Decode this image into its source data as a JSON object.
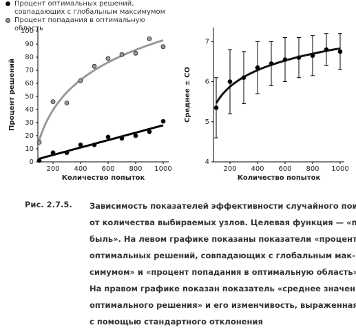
{
  "chart_data": [
    {
      "type": "scatter",
      "xlabel": "Количество попыток",
      "ylabel": "Процент решений",
      "legend": "top",
      "xlim": [
        90,
        1040
      ],
      "xticks": [
        200,
        400,
        600,
        800,
        1000
      ],
      "ylim": [
        0,
        100
      ],
      "yticks": [
        0,
        10,
        20,
        30,
        40,
        50,
        60,
        70,
        80,
        90,
        100
      ],
      "series": [
        {
          "name": "Процент оптимальных решений, совпадающих с глобальным максимумом",
          "color": "#000000",
          "trendline": "linear",
          "x": [
            100,
            200,
            300,
            400,
            500,
            600,
            700,
            800,
            900,
            1000
          ],
          "values": [
            1,
            7,
            7,
            13,
            13,
            19,
            18,
            20,
            23,
            31
          ]
        },
        {
          "name": "Процент попадания в оптимальную область",
          "color": "#999999",
          "trendline": "log",
          "x": [
            100,
            200,
            300,
            400,
            500,
            600,
            700,
            800,
            900,
            1000
          ],
          "values": [
            15,
            46,
            45,
            62,
            73,
            79,
            82,
            83,
            94,
            88
          ]
        }
      ]
    },
    {
      "type": "errorbar",
      "xlabel": "Количество попыток",
      "ylabel": "Среднее ± СО",
      "xlim": [
        80,
        1030
      ],
      "xticks": [
        200,
        400,
        600,
        800,
        1000
      ],
      "ylim": [
        4,
        7.35
      ],
      "yticks": [
        4,
        5,
        6,
        7
      ],
      "series": [
        {
          "color": "#000000",
          "trendline": "log",
          "x": [
            100,
            200,
            300,
            400,
            500,
            600,
            700,
            800,
            900,
            1000
          ],
          "values": [
            5.35,
            6.0,
            6.1,
            6.35,
            6.45,
            6.55,
            6.6,
            6.65,
            6.8,
            6.75
          ],
          "errors": [
            0.75,
            0.8,
            0.65,
            0.65,
            0.55,
            0.55,
            0.5,
            0.5,
            0.4,
            0.45
          ]
        }
      ]
    }
  ],
  "caption": {
    "label": "Рис. 2.7.5.",
    "lines": [
      "Зависимость показателей эффективности случайного поиска",
      "от количества выбираемых узлов. Целевая функция — «при-",
      "быль». На левом графике показаны показатели «процент",
      "оптимальных решений, совпадающих с глобальным мак-",
      "симумом» и «процент попадания в оптимальную область».",
      "На правом графике показан показатель «среднее значение",
      "оптимального решения» и его изменчивость, выраженная",
      "с помощью стандартного отклонения"
    ]
  }
}
